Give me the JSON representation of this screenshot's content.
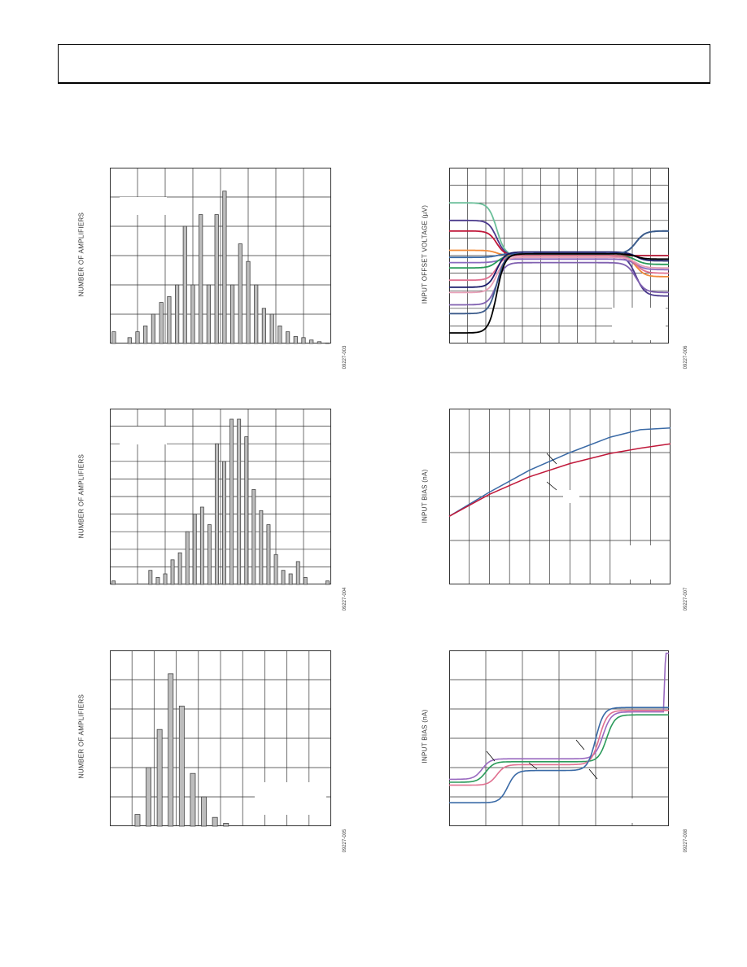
{
  "header": {
    "title": ""
  },
  "colors": {
    "axis": "#333333",
    "grid": "#333333",
    "bar_fill": "#bdbdbd",
    "bar_stroke": "#444444"
  },
  "charts": [
    {
      "id": "c1",
      "ylabel": "NUMBER OF AMPLIFIERS",
      "fig_id": "09227-003"
    },
    {
      "id": "c2",
      "ylabel": "NUMBER OF AMPLIFIERS",
      "fig_id": "09227-004"
    },
    {
      "id": "c3",
      "ylabel": "NUMBER OF AMPLIFIERS",
      "fig_id": "09227-005"
    },
    {
      "id": "c4",
      "ylabel": "INPUT OFFSET VOLTAGE (µV)",
      "fig_id": "09227-006"
    },
    {
      "id": "c5",
      "ylabel": "INPUT BIAS (nA)",
      "fig_id": "09227-007"
    },
    {
      "id": "c6",
      "ylabel": "INPUT BIAS (nA)",
      "fig_id": "09227-008"
    }
  ],
  "chart_data": [
    {
      "type": "bar",
      "chart": "c1",
      "grid": {
        "cols": 8,
        "rows": 6
      },
      "values": [
        2,
        0,
        1,
        2,
        3,
        5,
        7,
        8,
        10,
        20,
        10,
        22,
        10,
        22,
        26,
        10,
        17,
        14,
        10,
        6,
        5,
        3,
        2,
        1.2,
        1.0,
        0.6,
        0.3,
        0.1
      ],
      "ylim": [
        0,
        30
      ]
    },
    {
      "type": "bar",
      "chart": "c2",
      "grid": {
        "cols": 8,
        "rows": 10
      },
      "values": [
        0.2,
        0,
        0,
        0,
        0,
        0.8,
        0.4,
        0.6,
        1.4,
        1.8,
        3.0,
        4.0,
        4.4,
        3.4,
        8.0,
        7.0,
        9.4,
        9.4,
        8.4,
        5.4,
        4.2,
        3.4,
        1.7,
        0.8,
        0.6,
        1.3,
        0.4,
        0,
        0,
        0.2
      ],
      "ylim": [
        0,
        10
      ]
    },
    {
      "type": "bar",
      "chart": "c3",
      "grid": {
        "cols": 10,
        "rows": 6
      },
      "values": [
        0,
        0,
        0.4,
        2.0,
        3.3,
        5.2,
        4.1,
        1.8,
        1.0,
        0.3,
        0.1,
        0,
        0,
        0,
        0,
        0,
        0,
        0,
        0,
        0
      ],
      "ylim": [
        0,
        6
      ]
    },
    {
      "type": "line",
      "chart": "c4",
      "grid": {
        "cols": 12,
        "rows": 10
      },
      "xlim": [
        0,
        12
      ],
      "ylim": [
        0,
        10
      ],
      "series": [
        {
          "color": "#6bbf9a",
          "start": 8.0,
          "mid": 5.0,
          "end": 5.0
        },
        {
          "color": "#4b3a8c",
          "start": 7.0,
          "mid": 5.0,
          "end": 2.7
        },
        {
          "color": "#c0183a",
          "start": 6.4,
          "mid": 5.0,
          "end": 5.0
        },
        {
          "color": "#f08a3a",
          "start": 5.3,
          "mid": 5.0,
          "end": 3.8
        },
        {
          "color": "#3a6aa6",
          "start": 4.9,
          "mid": 5.1,
          "end": 6.4
        },
        {
          "color": "#8a6ac0",
          "start": 4.6,
          "mid": 4.8,
          "end": 4.2
        },
        {
          "color": "#2a9a5a",
          "start": 4.3,
          "mid": 5.0,
          "end": 4.5
        },
        {
          "color": "#e07090",
          "start": 3.6,
          "mid": 5.0,
          "end": 4.0
        },
        {
          "color": "#1a1a6a",
          "start": 3.2,
          "mid": 5.2,
          "end": 4.7
        },
        {
          "color": "#e8a0b8",
          "start": 2.9,
          "mid": 4.9,
          "end": 4.3
        },
        {
          "color": "#8060b0",
          "start": 2.2,
          "mid": 4.6,
          "end": 2.9
        },
        {
          "color": "#3a5a8a",
          "start": 1.7,
          "mid": 5.1,
          "end": 6.4
        },
        {
          "color": "#000000",
          "start": 0.6,
          "mid": 5.1,
          "end": 4.8
        }
      ]
    },
    {
      "type": "line",
      "chart": "c5",
      "grid": {
        "cols": 11,
        "rows": 4
      },
      "xlim": [
        0,
        11
      ],
      "ylim": [
        0,
        4
      ],
      "series": [
        {
          "color": "#3a6aa6",
          "points": [
            [
              0,
              1.55
            ],
            [
              2,
              2.1
            ],
            [
              4,
              2.6
            ],
            [
              6,
              3.0
            ],
            [
              8,
              3.35
            ],
            [
              9.5,
              3.52
            ],
            [
              11,
              3.56
            ]
          ]
        },
        {
          "color": "#c0183a",
          "points": [
            [
              0,
              1.55
            ],
            [
              2,
              2.05
            ],
            [
              4,
              2.45
            ],
            [
              6,
              2.75
            ],
            [
              8,
              2.98
            ],
            [
              9.5,
              3.1
            ],
            [
              11,
              3.2
            ]
          ]
        }
      ]
    },
    {
      "type": "line",
      "chart": "c6",
      "grid": {
        "cols": 6,
        "rows": 6
      },
      "xlim": [
        0,
        6
      ],
      "ylim": [
        0,
        6
      ],
      "series": [
        {
          "color": "#9a6ac0",
          "lo": 1.6,
          "mid": 2.3,
          "hi": 3.9,
          "t1": 0.9,
          "t2": 4.2,
          "endSpike": true
        },
        {
          "color": "#2a9a5a",
          "lo": 1.5,
          "mid": 2.2,
          "hi": 3.8,
          "t1": 1.0,
          "t2": 4.3
        },
        {
          "color": "#e07090",
          "lo": 1.4,
          "mid": 2.1,
          "hi": 3.95,
          "t1": 1.3,
          "t2": 4.1
        },
        {
          "color": "#3a6aa6",
          "lo": 0.8,
          "mid": 1.9,
          "hi": 4.05,
          "t1": 1.6,
          "t2": 4.0
        }
      ]
    }
  ]
}
